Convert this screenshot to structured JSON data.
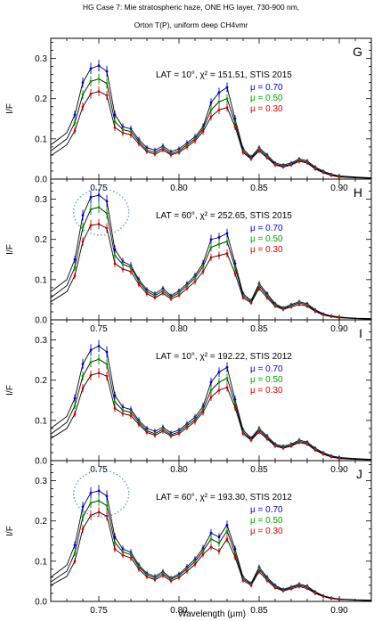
{
  "figure": {
    "title_lines": [
      "HG Case 7: Mie stratospheric haze,  ONE HG layer, 730-900 nm,",
      "Orton T(P), uniform deep CH4vmr"
    ],
    "xlabel": "Wavelength (μm)",
    "colors": {
      "mu_070": "#0000dd",
      "mu_050": "#00a000",
      "mu_030": "#dd0000",
      "circle": "#3399dd",
      "model": "#000000"
    }
  },
  "chart_data": [
    {
      "type": "line",
      "panel_letter": "G",
      "annotation": "LAT =  10°,  χ² = 151.51,  STIS  2015",
      "lat": 10,
      "chi2": 151.51,
      "stis_year": 2015,
      "ylabel": "I/F",
      "xlim": [
        0.72,
        0.92
      ],
      "ylim": [
        0.0,
        0.35
      ],
      "xticks": [
        "0.75",
        "0.80",
        "0.85",
        "0.90"
      ],
      "yticks": [
        "0.0",
        "0.1",
        "0.2",
        "0.3"
      ],
      "legend": [
        "μ = 0.70",
        "μ = 0.50",
        "μ = 0.30"
      ],
      "highlight_circle": false,
      "x": [
        0.72,
        0.73,
        0.735,
        0.74,
        0.745,
        0.75,
        0.755,
        0.76,
        0.765,
        0.77,
        0.775,
        0.78,
        0.785,
        0.79,
        0.795,
        0.8,
        0.805,
        0.81,
        0.815,
        0.82,
        0.825,
        0.83,
        0.835,
        0.84,
        0.845,
        0.85,
        0.855,
        0.86,
        0.865,
        0.87,
        0.875,
        0.88,
        0.885,
        0.89,
        0.895,
        0.9,
        0.91,
        0.92
      ],
      "series": [
        {
          "name": "μ = 0.70",
          "mu": 0.7,
          "values": [
            0.085,
            0.115,
            0.16,
            0.24,
            0.275,
            0.282,
            0.268,
            0.16,
            0.13,
            0.125,
            0.098,
            0.078,
            0.072,
            0.082,
            0.068,
            0.075,
            0.09,
            0.105,
            0.13,
            0.19,
            0.215,
            0.228,
            0.15,
            0.075,
            0.055,
            0.078,
            0.06,
            0.04,
            0.035,
            0.04,
            0.05,
            0.045,
            0.03,
            0.02,
            0.012,
            0.008,
            0.005,
            0.003
          ]
        },
        {
          "name": "μ = 0.50",
          "mu": 0.5,
          "values": [
            0.07,
            0.1,
            0.14,
            0.21,
            0.243,
            0.249,
            0.238,
            0.143,
            0.123,
            0.118,
            0.093,
            0.072,
            0.066,
            0.077,
            0.063,
            0.07,
            0.085,
            0.1,
            0.125,
            0.172,
            0.192,
            0.2,
            0.14,
            0.07,
            0.052,
            0.074,
            0.056,
            0.037,
            0.032,
            0.037,
            0.047,
            0.042,
            0.027,
            0.018,
            0.01,
            0.006,
            0.004,
            0.002
          ]
        },
        {
          "name": "μ = 0.30",
          "mu": 0.3,
          "values": [
            0.058,
            0.085,
            0.12,
            0.18,
            0.212,
            0.218,
            0.208,
            0.128,
            0.115,
            0.11,
            0.088,
            0.068,
            0.062,
            0.072,
            0.06,
            0.066,
            0.08,
            0.095,
            0.118,
            0.155,
            0.172,
            0.178,
            0.13,
            0.066,
            0.05,
            0.07,
            0.053,
            0.035,
            0.03,
            0.035,
            0.044,
            0.04,
            0.025,
            0.016,
            0.009,
            0.005,
            0.003,
            0.002
          ]
        }
      ]
    },
    {
      "type": "line",
      "panel_letter": "H",
      "annotation": "LAT =  60°,  χ² = 252.65,  STIS  2015",
      "lat": 60,
      "chi2": 252.65,
      "stis_year": 2015,
      "ylabel": "I/F",
      "xlim": [
        0.72,
        0.92
      ],
      "ylim": [
        0.0,
        0.35
      ],
      "xticks": [
        "0.75",
        "0.80",
        "0.85",
        "0.90"
      ],
      "yticks": [
        "0.0",
        "0.1",
        "0.2",
        "0.3"
      ],
      "legend": [
        "μ = 0.70",
        "μ = 0.50",
        "μ = 0.30"
      ],
      "highlight_circle": true,
      "x": [
        0.72,
        0.73,
        0.735,
        0.74,
        0.745,
        0.75,
        0.755,
        0.76,
        0.765,
        0.77,
        0.775,
        0.78,
        0.785,
        0.79,
        0.795,
        0.8,
        0.805,
        0.81,
        0.815,
        0.82,
        0.825,
        0.83,
        0.835,
        0.84,
        0.845,
        0.85,
        0.855,
        0.86,
        0.865,
        0.87,
        0.875,
        0.88,
        0.885,
        0.89,
        0.895,
        0.9,
        0.91,
        0.92
      ],
      "series": [
        {
          "name": "μ = 0.70",
          "mu": 0.7,
          "values": [
            0.07,
            0.1,
            0.15,
            0.26,
            0.305,
            0.31,
            0.295,
            0.175,
            0.145,
            0.135,
            0.1,
            0.075,
            0.065,
            0.078,
            0.06,
            0.072,
            0.09,
            0.11,
            0.14,
            0.2,
            0.205,
            0.215,
            0.14,
            0.065,
            0.048,
            0.09,
            0.065,
            0.04,
            0.03,
            0.038,
            0.045,
            0.04,
            0.025,
            0.015,
            0.01,
            0.007,
            0.004,
            0.003
          ]
        },
        {
          "name": "μ = 0.50",
          "mu": 0.5,
          "values": [
            0.055,
            0.085,
            0.13,
            0.23,
            0.275,
            0.28,
            0.265,
            0.16,
            0.138,
            0.13,
            0.095,
            0.07,
            0.06,
            0.072,
            0.056,
            0.067,
            0.085,
            0.104,
            0.132,
            0.18,
            0.188,
            0.195,
            0.13,
            0.06,
            0.045,
            0.085,
            0.06,
            0.037,
            0.028,
            0.035,
            0.042,
            0.037,
            0.023,
            0.013,
            0.009,
            0.006,
            0.003,
            0.002
          ]
        },
        {
          "name": "μ = 0.30",
          "mu": 0.3,
          "values": [
            0.045,
            0.07,
            0.11,
            0.195,
            0.235,
            0.238,
            0.228,
            0.14,
            0.126,
            0.12,
            0.088,
            0.065,
            0.055,
            0.066,
            0.052,
            0.061,
            0.078,
            0.095,
            0.12,
            0.155,
            0.16,
            0.165,
            0.115,
            0.055,
            0.042,
            0.078,
            0.055,
            0.034,
            0.026,
            0.032,
            0.038,
            0.034,
            0.021,
            0.012,
            0.008,
            0.005,
            0.003,
            0.002
          ]
        }
      ]
    },
    {
      "type": "line",
      "panel_letter": "I",
      "annotation": "LAT =  10°,  χ² = 192.22,  STIS  2012",
      "lat": 10,
      "chi2": 192.22,
      "stis_year": 2012,
      "ylabel": "I/F",
      "xlim": [
        0.72,
        0.92
      ],
      "ylim": [
        0.0,
        0.35
      ],
      "xticks": [
        "0.75",
        "0.80",
        "0.85",
        "0.90"
      ],
      "yticks": [
        "0.0",
        "0.1",
        "0.2",
        "0.3"
      ],
      "legend": [
        "μ = 0.70",
        "μ = 0.50",
        "μ = 0.30"
      ],
      "highlight_circle": false,
      "x": [
        0.72,
        0.73,
        0.735,
        0.74,
        0.745,
        0.75,
        0.755,
        0.76,
        0.765,
        0.77,
        0.775,
        0.78,
        0.785,
        0.79,
        0.795,
        0.8,
        0.805,
        0.81,
        0.815,
        0.82,
        0.825,
        0.83,
        0.835,
        0.84,
        0.845,
        0.85,
        0.855,
        0.86,
        0.865,
        0.87,
        0.875,
        0.88,
        0.885,
        0.89,
        0.895,
        0.9,
        0.91,
        0.92
      ],
      "series": [
        {
          "name": "μ = 0.70",
          "mu": 0.7,
          "values": [
            0.08,
            0.11,
            0.155,
            0.24,
            0.275,
            0.285,
            0.27,
            0.162,
            0.133,
            0.127,
            0.1,
            0.08,
            0.073,
            0.083,
            0.069,
            0.076,
            0.092,
            0.108,
            0.135,
            0.195,
            0.22,
            0.232,
            0.152,
            0.076,
            0.056,
            0.08,
            0.061,
            0.041,
            0.036,
            0.041,
            0.051,
            0.046,
            0.031,
            0.02,
            0.012,
            0.008,
            0.005,
            0.003
          ]
        },
        {
          "name": "μ = 0.50",
          "mu": 0.5,
          "values": [
            0.066,
            0.095,
            0.136,
            0.21,
            0.245,
            0.252,
            0.24,
            0.146,
            0.125,
            0.12,
            0.095,
            0.074,
            0.067,
            0.078,
            0.064,
            0.071,
            0.087,
            0.102,
            0.127,
            0.175,
            0.195,
            0.205,
            0.142,
            0.071,
            0.053,
            0.076,
            0.057,
            0.038,
            0.033,
            0.038,
            0.048,
            0.043,
            0.028,
            0.018,
            0.01,
            0.006,
            0.004,
            0.002
          ]
        },
        {
          "name": "μ = 0.30",
          "mu": 0.3,
          "values": [
            0.055,
            0.08,
            0.116,
            0.18,
            0.212,
            0.218,
            0.21,
            0.13,
            0.117,
            0.112,
            0.09,
            0.07,
            0.063,
            0.073,
            0.061,
            0.067,
            0.082,
            0.097,
            0.12,
            0.158,
            0.175,
            0.182,
            0.132,
            0.067,
            0.051,
            0.071,
            0.054,
            0.036,
            0.031,
            0.036,
            0.045,
            0.041,
            0.026,
            0.016,
            0.009,
            0.005,
            0.003,
            0.002
          ]
        }
      ]
    },
    {
      "type": "line",
      "panel_letter": "J",
      "annotation": "LAT =  60°,  χ² = 193.30,  STIS  2012",
      "lat": 60,
      "chi2": 193.3,
      "stis_year": 2012,
      "ylabel": "I/F",
      "xlim": [
        0.72,
        0.92
      ],
      "ylim": [
        0.0,
        0.35
      ],
      "xticks": [
        "0.75",
        "0.80",
        "0.85",
        "0.90"
      ],
      "yticks": [
        "0.0",
        "0.1",
        "0.2",
        "0.3"
      ],
      "legend": [
        "μ = 0.70",
        "μ = 0.50",
        "μ = 0.30"
      ],
      "highlight_circle": true,
      "x": [
        0.72,
        0.73,
        0.735,
        0.74,
        0.745,
        0.75,
        0.755,
        0.76,
        0.765,
        0.77,
        0.775,
        0.78,
        0.785,
        0.79,
        0.795,
        0.8,
        0.805,
        0.81,
        0.815,
        0.82,
        0.825,
        0.83,
        0.835,
        0.84,
        0.845,
        0.85,
        0.855,
        0.86,
        0.865,
        0.87,
        0.875,
        0.88,
        0.885,
        0.89,
        0.895,
        0.9,
        0.91,
        0.92
      ],
      "series": [
        {
          "name": "μ = 0.70",
          "mu": 0.7,
          "values": [
            0.06,
            0.09,
            0.14,
            0.235,
            0.27,
            0.275,
            0.262,
            0.16,
            0.13,
            0.122,
            0.09,
            0.07,
            0.062,
            0.074,
            0.058,
            0.068,
            0.086,
            0.105,
            0.132,
            0.17,
            0.16,
            0.19,
            0.13,
            0.06,
            0.045,
            0.085,
            0.06,
            0.04,
            0.03,
            0.036,
            0.043,
            0.038,
            0.024,
            0.014,
            0.009,
            0.006,
            0.004,
            0.003
          ]
        },
        {
          "name": "μ = 0.50",
          "mu": 0.5,
          "values": [
            0.048,
            0.075,
            0.12,
            0.21,
            0.245,
            0.25,
            0.238,
            0.146,
            0.123,
            0.116,
            0.086,
            0.066,
            0.058,
            0.069,
            0.055,
            0.064,
            0.081,
            0.099,
            0.125,
            0.155,
            0.145,
            0.175,
            0.12,
            0.056,
            0.043,
            0.08,
            0.056,
            0.037,
            0.028,
            0.034,
            0.04,
            0.035,
            0.022,
            0.013,
            0.008,
            0.005,
            0.003,
            0.002
          ]
        },
        {
          "name": "μ = 0.30",
          "mu": 0.3,
          "values": [
            0.04,
            0.062,
            0.1,
            0.18,
            0.214,
            0.222,
            0.212,
            0.13,
            0.115,
            0.108,
            0.08,
            0.061,
            0.054,
            0.064,
            0.051,
            0.059,
            0.075,
            0.092,
            0.117,
            0.135,
            0.125,
            0.155,
            0.11,
            0.052,
            0.04,
            0.074,
            0.052,
            0.034,
            0.026,
            0.031,
            0.037,
            0.032,
            0.02,
            0.012,
            0.007,
            0.005,
            0.003,
            0.002
          ]
        }
      ]
    }
  ]
}
